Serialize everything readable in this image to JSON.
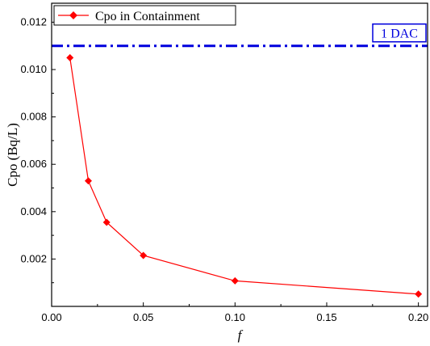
{
  "chart_data": {
    "type": "line",
    "title": "",
    "xlabel": "f",
    "ylabel": "Cpo (Bq/L)",
    "xlim": [
      0.0,
      0.205
    ],
    "ylim": [
      0.0,
      0.0128
    ],
    "xticks": [
      "0.00",
      "0.05",
      "0.10",
      "0.15",
      "0.20"
    ],
    "xtick_values": [
      0.0,
      0.05,
      0.1,
      0.15,
      0.2
    ],
    "yticks": [
      "0.002",
      "0.004",
      "0.006",
      "0.008",
      "0.010",
      "0.012"
    ],
    "ytick_values": [
      0.002,
      0.004,
      0.006,
      0.008,
      0.01,
      0.012
    ],
    "grid": false,
    "legend_placement": "top-left",
    "series": [
      {
        "name": "Cpo in Containment",
        "color": "#ff0000",
        "marker": "diamond",
        "x": [
          0.01,
          0.02,
          0.03,
          0.05,
          0.1,
          0.2
        ],
        "y": [
          0.0105,
          0.0053,
          0.00355,
          0.00215,
          0.00108,
          0.00052
        ]
      }
    ],
    "reference_line": {
      "label": "1 DAC",
      "y": 0.011,
      "color": "#0000dd",
      "style": "dash-dot"
    }
  }
}
